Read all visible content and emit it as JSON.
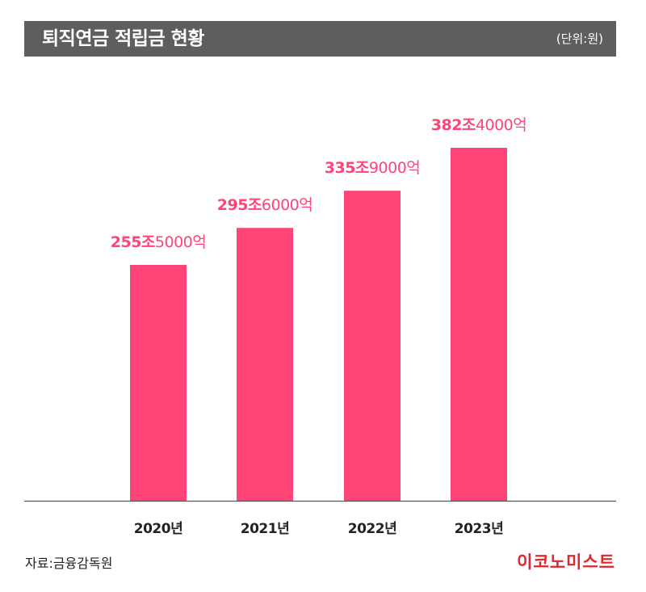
{
  "header": {
    "title": "퇴직연금 적립금 현황",
    "unit": "(단위:원)"
  },
  "footer": {
    "source": "자료:금융감독원",
    "logo": "이코노미스트"
  },
  "colors": {
    "bar": "#ff4477",
    "label": "#ff4477",
    "title_bg": "#5e5e5e",
    "logo": "#e0262b"
  },
  "chart_data": {
    "type": "bar",
    "categories": [
      "2020년",
      "2021년",
      "2022년",
      "2023년"
    ],
    "values": [
      255.5,
      295.6,
      335.9,
      382.4
    ],
    "value_labels": [
      {
        "bold": "255조",
        "rest": "5000억"
      },
      {
        "bold": "295조",
        "rest": "6000억"
      },
      {
        "bold": "335조",
        "rest": "9000억"
      },
      {
        "bold": "382조",
        "rest": "4000억"
      }
    ],
    "unit": "조원",
    "ylim": [
      0,
      382.4
    ],
    "grid": false,
    "legend": "none"
  }
}
